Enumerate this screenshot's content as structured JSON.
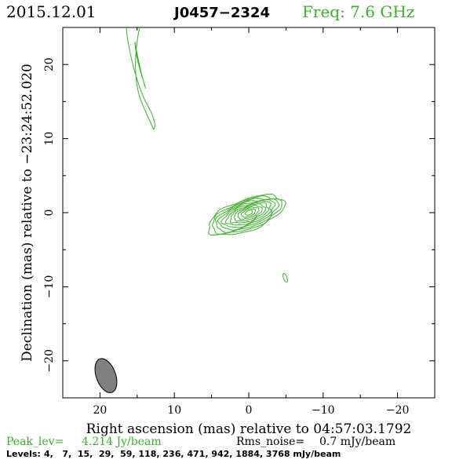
{
  "header": {
    "date": "2015.12.01",
    "source": "J0457−2324",
    "frequency": "Freq: 7.6 GHz"
  },
  "footer": {
    "peak_label": "Peak_lev=",
    "peak_value": "4.214 Jy/beam",
    "rms_label": "Rms_noise=",
    "rms_value": "0.7 mJy/beam",
    "levels_label": "Levels:",
    "levels_values": "4,   7,  15,  29,  59, 118, 236, 471, 942, 1884, 3768 mJy/beam"
  },
  "colors": {
    "contour": "#3cb02c",
    "frequency_text": "#3cb02c",
    "beam_fill": "#808080",
    "axes": "#000000"
  },
  "chart_data": {
    "type": "contour",
    "xlabel": "Right ascension (mas) relative to 04:57:03.1792",
    "ylabel": "Declination (mas) relative to −23:24:52.020",
    "xlim": [
      25,
      -25
    ],
    "ylim": [
      -25,
      25
    ],
    "x_ticks": [
      20,
      10,
      0,
      -10,
      -20
    ],
    "y_ticks": [
      20,
      10,
      0,
      -10,
      -20
    ],
    "x_tick_labels": [
      "20",
      "10",
      "0",
      "−10",
      "−20"
    ],
    "y_tick_labels": [
      "20",
      "10",
      "0",
      "−10",
      "−20"
    ],
    "contour_levels_mJy": [
      4,
      7,
      15,
      29,
      59,
      118,
      236,
      471,
      942,
      1884,
      3768
    ],
    "peak_Jy_per_beam": 4.214,
    "rms_mJy_per_beam": 0.7,
    "core": {
      "x": 0,
      "y": 0,
      "pa_deg": -20
    },
    "features": [
      {
        "name": "jet-component",
        "x": 13,
        "y": 20
      },
      {
        "name": "small-blob",
        "x": -4.9,
        "y": -8.8
      }
    ],
    "beam": {
      "x": 19.2,
      "y": -22,
      "major_mas": 4.8,
      "minor_mas": 1.0,
      "pa_deg": 20
    }
  }
}
